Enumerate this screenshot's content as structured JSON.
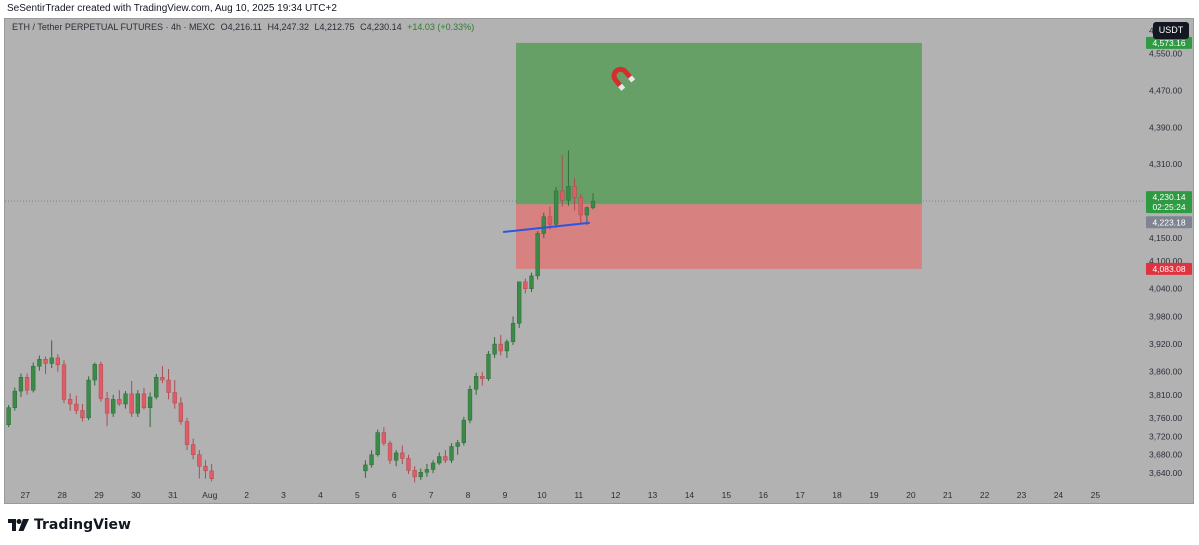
{
  "header": {
    "credit": "SeSentirTrader created with TradingView.com, Aug 10, 2025 19:34 UTC+2"
  },
  "legend": {
    "symbol": "ETH / Tether PERPETUAL FUTURES · 4h · MEXC",
    "open": "O4,216.11",
    "high": "H4,247.32",
    "low": "L4,212.75",
    "close": "C4,230.14",
    "change": "+14.03 (+0.33%)"
  },
  "currency": "USDT",
  "footer": {
    "brand": "TradingView",
    "logo_icon": "tradingview-logo-icon"
  },
  "colors": {
    "background": "#b2b2b2",
    "up": "#3c8a48",
    "down": "#df5c66",
    "target_zone": "#66a066",
    "stop_zone": "#d78181",
    "trendline": "#2b55e6",
    "badge_green": "#2e9a42",
    "badge_red": "#e0323f",
    "badge_gray": "#7e8590"
  },
  "chart_data": {
    "type": "candlestick",
    "title": "ETH / Tether PERPETUAL FUTURES · 4h · MEXC",
    "price_range": [
      3610,
      4625
    ],
    "y_ticks": [
      4600,
      4550,
      4470,
      4390,
      4310,
      4150,
      4100,
      4040,
      3980,
      3920,
      3860,
      3810,
      3760,
      3720,
      3680,
      3640
    ],
    "y_tick_labels": [
      "4,600.00",
      "4,550.00",
      "4,470.00",
      "4,390.00",
      "4,310.00",
      "4,150.00",
      "4,100.00",
      "4,040.00",
      "3,980.00",
      "3,920.00",
      "3,860.00",
      "3,810.00",
      "3,760.00",
      "3,720.00",
      "3,680.00",
      "3,640.00"
    ],
    "x_ticks": [
      {
        "label": "27",
        "pos": -0.4
      },
      {
        "label": "28",
        "pos": 0.6
      },
      {
        "label": "29",
        "pos": 1.6
      },
      {
        "label": "30",
        "pos": 2.6
      },
      {
        "label": "31",
        "pos": 3.6
      },
      {
        "label": "Aug",
        "pos": 4.6
      },
      {
        "label": "2",
        "pos": 5.6
      },
      {
        "label": "3",
        "pos": 6.6
      },
      {
        "label": "4",
        "pos": 7.6
      },
      {
        "label": "5",
        "pos": 8.6
      },
      {
        "label": "6",
        "pos": 9.6
      },
      {
        "label": "7",
        "pos": 10.6
      },
      {
        "label": "8",
        "pos": 11.6
      },
      {
        "label": "9",
        "pos": 12.6
      },
      {
        "label": "10",
        "pos": 13.6
      },
      {
        "label": "11",
        "pos": 14.6
      },
      {
        "label": "12",
        "pos": 15.6
      },
      {
        "label": "13",
        "pos": 16.6
      },
      {
        "label": "14",
        "pos": 17.6
      },
      {
        "label": "15",
        "pos": 18.6
      },
      {
        "label": "16",
        "pos": 19.6
      },
      {
        "label": "17",
        "pos": 20.6
      },
      {
        "label": "18",
        "pos": 21.6
      },
      {
        "label": "19",
        "pos": 22.6
      },
      {
        "label": "20",
        "pos": 23.6
      },
      {
        "label": "21",
        "pos": 24.6
      },
      {
        "label": "22",
        "pos": 25.6
      },
      {
        "label": "23",
        "pos": 26.6
      },
      {
        "label": "24",
        "pos": 27.6
      },
      {
        "label": "25",
        "pos": 28.6
      }
    ],
    "candle_step_days": 0.1667,
    "candles": [
      [
        3749,
        3756,
        3736,
        3741
      ],
      [
        3741,
        3760,
        3735,
        3752
      ],
      [
        3752,
        3758,
        3738,
        3743
      ],
      [
        3743,
        3750,
        3727,
        3732
      ],
      [
        3732,
        3768,
        3728,
        3760
      ],
      [
        3760,
        3775,
        3740,
        3745
      ],
      [
        3745,
        3788,
        3740,
        3782
      ],
      [
        3782,
        3826,
        3776,
        3818
      ],
      [
        3818,
        3856,
        3805,
        3848
      ],
      [
        3848,
        3856,
        3810,
        3820
      ],
      [
        3820,
        3880,
        3815,
        3872
      ],
      [
        3872,
        3895,
        3862,
        3887
      ],
      [
        3887,
        3893,
        3855,
        3878
      ],
      [
        3878,
        3928,
        3868,
        3890
      ],
      [
        3890,
        3898,
        3860,
        3875
      ],
      [
        3875,
        3885,
        3792,
        3800
      ],
      [
        3800,
        3813,
        3775,
        3790
      ],
      [
        3790,
        3808,
        3768,
        3776
      ],
      [
        3776,
        3790,
        3752,
        3760
      ],
      [
        3760,
        3850,
        3755,
        3842
      ],
      [
        3842,
        3880,
        3830,
        3876
      ],
      [
        3876,
        3882,
        3795,
        3802
      ],
      [
        3802,
        3816,
        3742,
        3770
      ],
      [
        3770,
        3810,
        3762,
        3800
      ],
      [
        3800,
        3820,
        3786,
        3790
      ],
      [
        3790,
        3818,
        3780,
        3812
      ],
      [
        3812,
        3840,
        3762,
        3770
      ],
      [
        3770,
        3820,
        3762,
        3812
      ],
      [
        3812,
        3825,
        3778,
        3782
      ],
      [
        3782,
        3815,
        3740,
        3805
      ],
      [
        3805,
        3855,
        3800,
        3848
      ],
      [
        3848,
        3872,
        3835,
        3842
      ],
      [
        3842,
        3866,
        3800,
        3815
      ],
      [
        3815,
        3842,
        3780,
        3792
      ],
      [
        3792,
        3805,
        3745,
        3752
      ],
      [
        3752,
        3760,
        3690,
        3702
      ],
      [
        3702,
        3715,
        3670,
        3680
      ],
      [
        3680,
        3690,
        3628,
        3655
      ],
      [
        3655,
        3668,
        3628,
        3645
      ],
      [
        3645,
        3660,
        3622,
        3628
      ],
      null,
      null,
      null,
      null,
      null,
      null,
      null,
      null,
      null,
      null,
      null,
      null,
      null,
      null,
      null,
      null,
      null,
      null,
      null,
      null,
      null,
      null,
      null,
      null,
      [
        3645,
        3668,
        3630,
        3658
      ],
      [
        3658,
        3690,
        3652,
        3680
      ],
      [
        3680,
        3735,
        3676,
        3728
      ],
      [
        3728,
        3740,
        3700,
        3705
      ],
      [
        3705,
        3710,
        3660,
        3668
      ],
      [
        3668,
        3690,
        3655,
        3684
      ],
      [
        3684,
        3700,
        3660,
        3672
      ],
      [
        3672,
        3680,
        3638,
        3646
      ],
      [
        3646,
        3655,
        3620,
        3632
      ],
      [
        3632,
        3650,
        3625,
        3642
      ],
      [
        3642,
        3660,
        3632,
        3648
      ],
      [
        3648,
        3668,
        3640,
        3662
      ],
      [
        3662,
        3685,
        3658,
        3676
      ],
      [
        3676,
        3690,
        3662,
        3668
      ],
      [
        3668,
        3705,
        3662,
        3698
      ],
      [
        3698,
        3712,
        3680,
        3706
      ],
      [
        3706,
        3762,
        3700,
        3755
      ],
      [
        3755,
        3830,
        3748,
        3822
      ],
      [
        3822,
        3858,
        3810,
        3850
      ],
      [
        3850,
        3860,
        3830,
        3845
      ],
      [
        3845,
        3905,
        3840,
        3898
      ],
      [
        3898,
        3935,
        3890,
        3920
      ],
      [
        3920,
        3940,
        3895,
        3905
      ],
      [
        3905,
        3930,
        3890,
        3925
      ],
      [
        3925,
        3980,
        3918,
        3965
      ],
      [
        3965,
        4020,
        3955,
        4055
      ],
      [
        4055,
        4062,
        4030,
        4040
      ],
      [
        4040,
        4075,
        4033,
        4068
      ],
      [
        4068,
        4165,
        4060,
        4160
      ],
      [
        4160,
        4205,
        4150,
        4196
      ],
      [
        4196,
        4218,
        4168,
        4180
      ],
      [
        4180,
        4260,
        4172,
        4252
      ],
      [
        4252,
        4330,
        4218,
        4232
      ],
      [
        4232,
        4340,
        4220,
        4262
      ],
      [
        4262,
        4280,
        4210,
        4238
      ],
      [
        4238,
        4245,
        4180,
        4200
      ],
      [
        4200,
        4218,
        4178,
        4216
      ],
      [
        4216,
        4247,
        4212,
        4230
      ]
    ],
    "trendline": {
      "x1_pos": 12.55,
      "y1": 4163,
      "x2_pos": 14.9,
      "y2": 4183
    },
    "position_tool": {
      "x_start_pos": 12.9,
      "x_end_pos": 23.9,
      "entry": 4223.18,
      "target": 4573.16,
      "stop": 4083.08
    },
    "current_price": 4230.14,
    "price_labels": [
      {
        "label": "4,573.16",
        "value": 4573.16,
        "kind": "target"
      },
      {
        "label": "4,230.14",
        "value": 4230.14,
        "kind": "last"
      },
      {
        "label": "02:25:24",
        "value": 4230.14,
        "kind": "countdown"
      },
      {
        "label": "4,223.18",
        "value": 4223.18,
        "kind": "entry"
      },
      {
        "label": "4,083.08",
        "value": 4083.08,
        "kind": "stop"
      }
    ],
    "magnet_icon": {
      "pos": 15.75,
      "price": 4500
    }
  }
}
